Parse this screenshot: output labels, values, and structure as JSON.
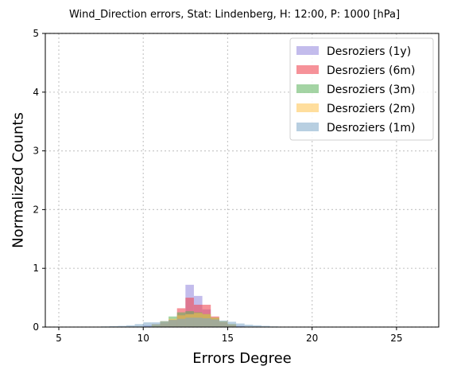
{
  "chart_data": {
    "type": "bar",
    "title": "Wind_Direction errors, Stat: Lindenberg, H: 12:00, P: 1000 [hPa]",
    "xlabel": "Errors Degree",
    "ylabel": "Normalized Counts",
    "xlim": [
      4.2,
      27.5
    ],
    "ylim": [
      0,
      5
    ],
    "x_ticks": [
      5,
      10,
      15,
      20,
      25
    ],
    "y_ticks": [
      0,
      1,
      2,
      3,
      4,
      5
    ],
    "grid": true,
    "legend_position": "top-right",
    "bin_width": 0.5,
    "series": [
      {
        "name": "Desroziers (1y)",
        "color": "#9b8fdf",
        "alpha": 0.6,
        "bins": [
          {
            "x0": 10.0,
            "y": 0.03
          },
          {
            "x0": 10.5,
            "y": 0.05
          },
          {
            "x0": 11.0,
            "y": 0.08
          },
          {
            "x0": 11.5,
            "y": 0.12
          },
          {
            "x0": 12.0,
            "y": 0.2
          },
          {
            "x0": 12.5,
            "y": 0.72
          },
          {
            "x0": 13.0,
            "y": 0.53
          },
          {
            "x0": 13.5,
            "y": 0.3
          },
          {
            "x0": 14.0,
            "y": 0.15
          },
          {
            "x0": 14.5,
            "y": 0.08
          },
          {
            "x0": 15.0,
            "y": 0.04
          },
          {
            "x0": 15.5,
            "y": 0.02
          }
        ]
      },
      {
        "name": "Desroziers (6m)",
        "color": "#f04a55",
        "alpha": 0.6,
        "bins": [
          {
            "x0": 11.0,
            "y": 0.06
          },
          {
            "x0": 11.5,
            "y": 0.12
          },
          {
            "x0": 12.0,
            "y": 0.32
          },
          {
            "x0": 12.5,
            "y": 0.5
          },
          {
            "x0": 13.0,
            "y": 0.38
          },
          {
            "x0": 13.5,
            "y": 0.38
          },
          {
            "x0": 14.0,
            "y": 0.18
          },
          {
            "x0": 14.5,
            "y": 0.08
          },
          {
            "x0": 15.0,
            "y": 0.03
          }
        ]
      },
      {
        "name": "Desroziers (3m)",
        "color": "#5ab05a",
        "alpha": 0.55,
        "bins": [
          {
            "x0": 10.5,
            "y": 0.04
          },
          {
            "x0": 11.0,
            "y": 0.1
          },
          {
            "x0": 11.5,
            "y": 0.18
          },
          {
            "x0": 12.0,
            "y": 0.25
          },
          {
            "x0": 12.5,
            "y": 0.27
          },
          {
            "x0": 13.0,
            "y": 0.25
          },
          {
            "x0": 13.5,
            "y": 0.22
          },
          {
            "x0": 14.0,
            "y": 0.16
          },
          {
            "x0": 14.5,
            "y": 0.1
          },
          {
            "x0": 15.0,
            "y": 0.05
          }
        ]
      },
      {
        "name": "Desroziers (2m)",
        "color": "#ffc34d",
        "alpha": 0.55,
        "bins": [
          {
            "x0": 10.5,
            "y": 0.05
          },
          {
            "x0": 11.0,
            "y": 0.1
          },
          {
            "x0": 11.5,
            "y": 0.14
          },
          {
            "x0": 12.0,
            "y": 0.2
          },
          {
            "x0": 12.5,
            "y": 0.22
          },
          {
            "x0": 13.0,
            "y": 0.24
          },
          {
            "x0": 13.5,
            "y": 0.22
          },
          {
            "x0": 14.0,
            "y": 0.16
          },
          {
            "x0": 14.5,
            "y": 0.1
          },
          {
            "x0": 15.0,
            "y": 0.05
          }
        ]
      },
      {
        "name": "Desroziers (1m)",
        "color": "#7ea7c9",
        "alpha": 0.55,
        "bins": [
          {
            "x0": 7.5,
            "y": 0.01
          },
          {
            "x0": 8.0,
            "y": 0.015
          },
          {
            "x0": 8.5,
            "y": 0.02
          },
          {
            "x0": 9.0,
            "y": 0.03
          },
          {
            "x0": 9.5,
            "y": 0.05
          },
          {
            "x0": 10.0,
            "y": 0.08
          },
          {
            "x0": 10.5,
            "y": 0.08
          },
          {
            "x0": 11.0,
            "y": 0.1
          },
          {
            "x0": 11.5,
            "y": 0.12
          },
          {
            "x0": 12.0,
            "y": 0.14
          },
          {
            "x0": 12.5,
            "y": 0.16
          },
          {
            "x0": 13.0,
            "y": 0.16
          },
          {
            "x0": 13.5,
            "y": 0.15
          },
          {
            "x0": 14.0,
            "y": 0.13
          },
          {
            "x0": 14.5,
            "y": 0.11
          },
          {
            "x0": 15.0,
            "y": 0.09
          },
          {
            "x0": 15.5,
            "y": 0.06
          },
          {
            "x0": 16.0,
            "y": 0.04
          },
          {
            "x0": 16.5,
            "y": 0.03
          },
          {
            "x0": 17.0,
            "y": 0.02
          },
          {
            "x0": 17.5,
            "y": 0.01
          }
        ]
      }
    ]
  }
}
